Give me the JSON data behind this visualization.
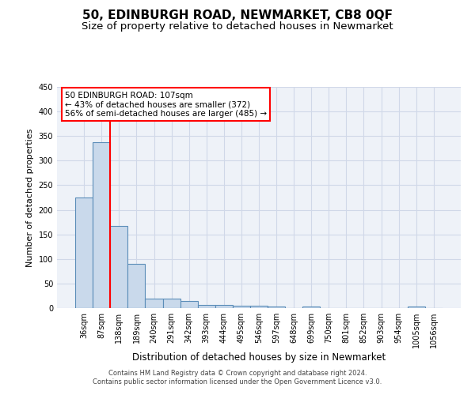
{
  "title": "50, EDINBURGH ROAD, NEWMARKET, CB8 0QF",
  "subtitle": "Size of property relative to detached houses in Newmarket",
  "xlabel": "Distribution of detached houses by size in Newmarket",
  "ylabel": "Number of detached properties",
  "categories": [
    "36sqm",
    "87sqm",
    "138sqm",
    "189sqm",
    "240sqm",
    "291sqm",
    "342sqm",
    "393sqm",
    "444sqm",
    "495sqm",
    "546sqm",
    "597sqm",
    "648sqm",
    "699sqm",
    "750sqm",
    "801sqm",
    "852sqm",
    "903sqm",
    "954sqm",
    "1005sqm",
    "1056sqm"
  ],
  "values": [
    225,
    337,
    167,
    90,
    20,
    20,
    14,
    6,
    6,
    5,
    5,
    4,
    0,
    3,
    0,
    0,
    0,
    0,
    0,
    3,
    0
  ],
  "bar_color": "#c9d9eb",
  "bar_edge_color": "#5b8db8",
  "bar_edge_width": 0.8,
  "red_line_x": 1.5,
  "annotation_text": "50 EDINBURGH ROAD: 107sqm\n← 43% of detached houses are smaller (372)\n56% of semi-detached houses are larger (485) →",
  "annotation_box_color": "white",
  "annotation_box_edge_color": "red",
  "ylim": [
    0,
    450
  ],
  "yticks": [
    0,
    50,
    100,
    150,
    200,
    250,
    300,
    350,
    400,
    450
  ],
  "grid_color": "#d0d8e8",
  "background_color": "#eef2f8",
  "footer_line1": "Contains HM Land Registry data © Crown copyright and database right 2024.",
  "footer_line2": "Contains public sector information licensed under the Open Government Licence v3.0.",
  "title_fontsize": 11,
  "subtitle_fontsize": 9.5,
  "xlabel_fontsize": 8.5,
  "ylabel_fontsize": 8,
  "tick_fontsize": 7,
  "annotation_fontsize": 7.5,
  "footer_fontsize": 6
}
